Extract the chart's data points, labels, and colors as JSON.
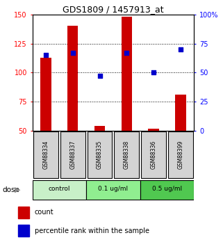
{
  "title": "GDS1809 / 1457913_at",
  "samples": [
    "GSM88334",
    "GSM88337",
    "GSM88335",
    "GSM88338",
    "GSM88336",
    "GSM88399"
  ],
  "count_values": [
    113,
    140,
    54,
    148,
    52,
    81
  ],
  "percentile_values": [
    65,
    67,
    47,
    67,
    50,
    70
  ],
  "groups": [
    {
      "label": "control",
      "indices": [
        0,
        1
      ],
      "color": "#c8f0c8"
    },
    {
      "label": "0.1 ug/ml",
      "indices": [
        2,
        3
      ],
      "color": "#90ee90"
    },
    {
      "label": "0.5 ug/ml",
      "indices": [
        4,
        5
      ],
      "color": "#50c850"
    }
  ],
  "ylim_left": [
    50,
    150
  ],
  "ylim_right": [
    0,
    100
  ],
  "yticks_left": [
    50,
    75,
    100,
    125,
    150
  ],
  "yticks_right": [
    0,
    25,
    50,
    75,
    100
  ],
  "ytick_labels_right": [
    "0",
    "25",
    "50",
    "75",
    "100%"
  ],
  "bar_color": "#cc0000",
  "dot_color": "#0000cc",
  "bar_width": 0.4,
  "sample_box_color": "#d3d3d3",
  "dose_label": "dose",
  "legend_count_label": "count",
  "legend_percentile_label": "percentile rank within the sample"
}
